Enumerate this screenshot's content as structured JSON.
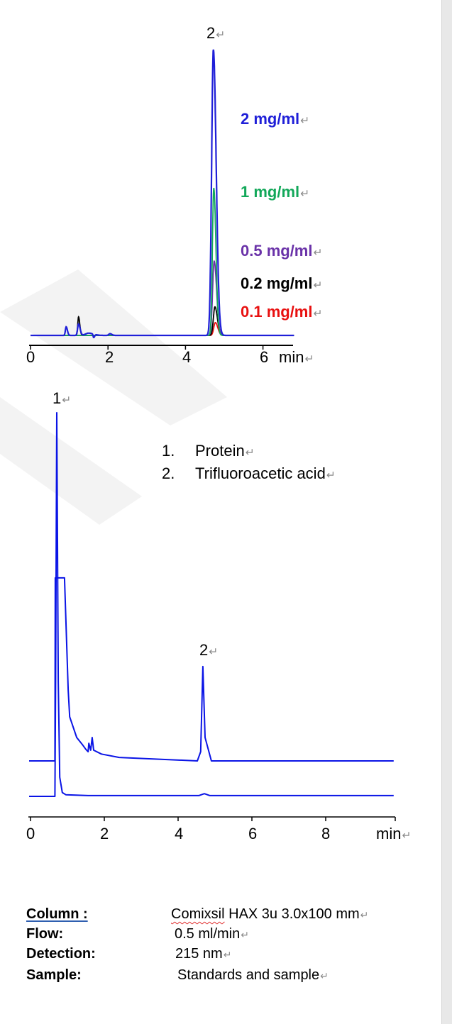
{
  "colors": {
    "blue": "#1f1fd8",
    "green": "#13a85a",
    "purple": "#6a32a8",
    "black": "#000000",
    "red": "#e81010",
    "trace": "#0a14e6"
  },
  "chart_data": [
    {
      "type": "line",
      "title": "",
      "xlabel": "min",
      "ylabel": "",
      "xlim": [
        0,
        6.8
      ],
      "x_ticks": [
        "0",
        "2",
        "4",
        "6"
      ],
      "grid": false,
      "peak_label": "2",
      "series": [
        {
          "name": "2 mg/ml",
          "color": "#1f1fd8",
          "peaks": [
            [
              4.72,
              100,
              0.045
            ],
            [
              0.92,
              3,
              0.02
            ],
            [
              1.24,
              4,
              0.025
            ],
            [
              1.5,
              0.8,
              0.08
            ],
            [
              1.63,
              -1.2,
              0.015
            ],
            [
              2.05,
              0.6,
              0.03
            ]
          ]
        },
        {
          "name": "1 mg/ml",
          "color": "#13a85a",
          "peaks": [
            [
              4.73,
              51.6,
              0.035
            ]
          ]
        },
        {
          "name": "0.5 mg/ml",
          "color": "#6a32a8",
          "peaks": [
            [
              4.74,
              26,
              0.04
            ]
          ]
        },
        {
          "name": "0.2 mg/ml",
          "color": "#000000",
          "peaks": [
            [
              4.76,
              10,
              0.04
            ],
            [
              1.24,
              6.5,
              0.02
            ]
          ]
        },
        {
          "name": "0.1 mg/ml",
          "color": "#e81010",
          "peaks": [
            [
              4.77,
              4.5,
              0.04
            ]
          ]
        }
      ]
    },
    {
      "type": "line",
      "title": "",
      "xlabel": "min",
      "ylabel": "",
      "xlim": [
        0,
        9.9
      ],
      "x_ticks": [
        "0",
        "2",
        "4",
        "6",
        "8"
      ],
      "grid": false,
      "peak_labels": [
        "1",
        "2"
      ],
      "legend_items": [
        "Protein",
        "Trifluoroacetic acid"
      ],
      "legend_numbers": [
        "1.",
        "2."
      ],
      "series": [
        {
          "color": "#0a14e6",
          "points": [
            [
              0,
              0
            ],
            [
              0.7,
              0
            ],
            [
              0.71,
              47.7
            ],
            [
              0.96,
              47.7
            ],
            [
              1.06,
              18.5
            ],
            [
              1.1,
              11.5
            ],
            [
              1.29,
              6.1
            ],
            [
              1.44,
              4.3
            ],
            [
              1.54,
              3.0
            ],
            [
              1.6,
              2.4
            ],
            [
              1.62,
              4.6
            ],
            [
              1.67,
              2.8
            ],
            [
              1.71,
              6.1
            ],
            [
              1.75,
              2.8
            ],
            [
              1.96,
              1.8
            ],
            [
              2.44,
              0.9
            ],
            [
              4.56,
              0
            ],
            [
              4.65,
              2.4
            ],
            [
              4.71,
              24.6
            ],
            [
              4.77,
              6.1
            ],
            [
              4.94,
              0
            ],
            [
              9.88,
              0
            ]
          ]
        },
        {
          "color": "#0a14e6",
          "points": [
            [
              0,
              0
            ],
            [
              0.7,
              0
            ],
            [
              0.72,
              30
            ],
            [
              0.75,
              100
            ],
            [
              0.79,
              30
            ],
            [
              0.83,
              5
            ],
            [
              0.9,
              1
            ],
            [
              1.0,
              0.4
            ],
            [
              1.6,
              0.2
            ],
            [
              4.6,
              0.2
            ],
            [
              4.75,
              0.7
            ],
            [
              4.9,
              0.2
            ],
            [
              9.88,
              0.2
            ]
          ]
        }
      ]
    }
  ],
  "conditions": [
    {
      "label": "Column :",
      "value": "Comixsil HAX 3u 3.0x100 mm"
    },
    {
      "label": "Flow:",
      "value": "0.5 ml/min"
    },
    {
      "label": "Detection:",
      "value": "215 nm"
    },
    {
      "label": "Sample:",
      "value": "Standards and sample"
    }
  ]
}
